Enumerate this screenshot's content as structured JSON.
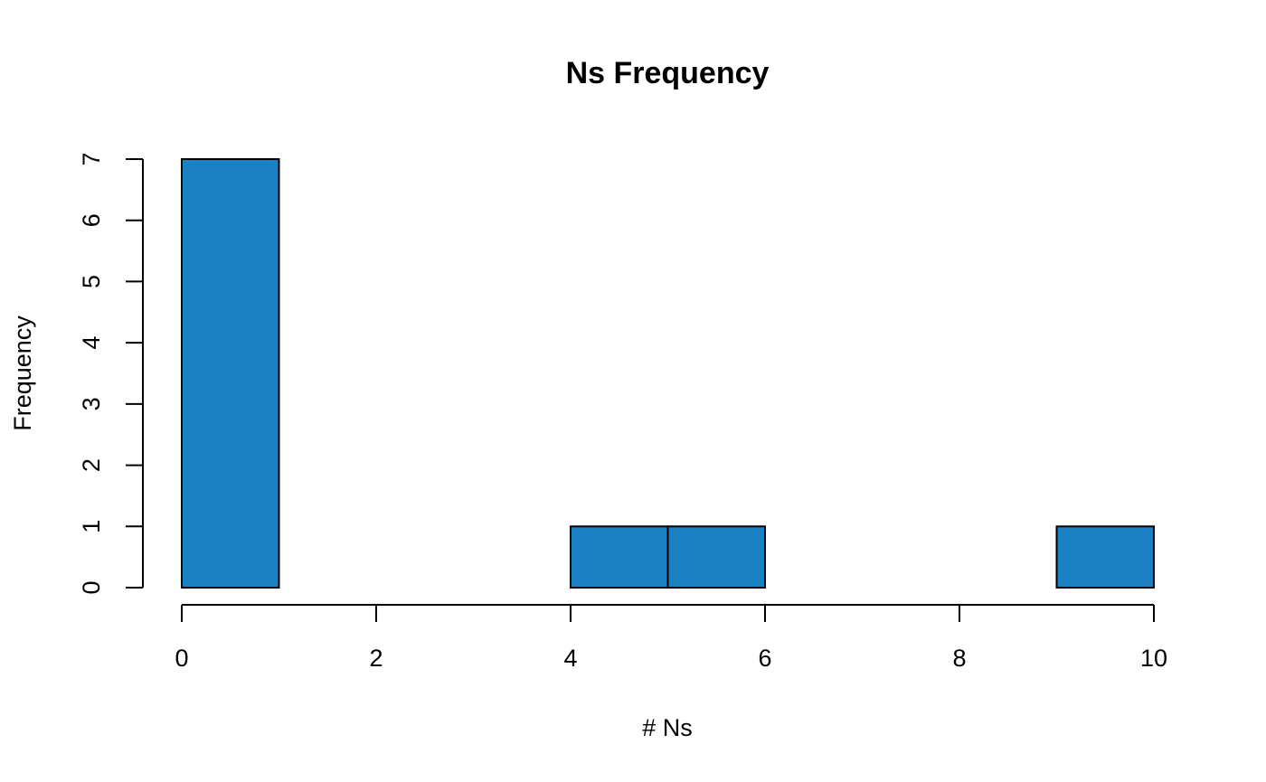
{
  "chart_data": {
    "type": "bar",
    "title": "Ns Frequency",
    "xlabel": "# Ns",
    "ylabel": "Frequency",
    "bins": [
      {
        "x0": 0,
        "x1": 1,
        "count": 7
      },
      {
        "x0": 1,
        "x1": 2,
        "count": 0
      },
      {
        "x0": 2,
        "x1": 3,
        "count": 0
      },
      {
        "x0": 3,
        "x1": 4,
        "count": 0
      },
      {
        "x0": 4,
        "x1": 5,
        "count": 1
      },
      {
        "x0": 5,
        "x1": 6,
        "count": 1
      },
      {
        "x0": 6,
        "x1": 7,
        "count": 0
      },
      {
        "x0": 7,
        "x1": 8,
        "count": 0
      },
      {
        "x0": 8,
        "x1": 9,
        "count": 0
      },
      {
        "x0": 9,
        "x1": 10,
        "count": 1
      }
    ],
    "xlim": [
      0,
      10
    ],
    "ylim": [
      0,
      7
    ],
    "x_ticks": [
      "0",
      "2",
      "4",
      "6",
      "8",
      "10"
    ],
    "y_ticks": [
      "0",
      "1",
      "2",
      "3",
      "4",
      "5",
      "6",
      "7"
    ],
    "bar_color": "#1b81c3",
    "grid": false,
    "legend": "none"
  }
}
